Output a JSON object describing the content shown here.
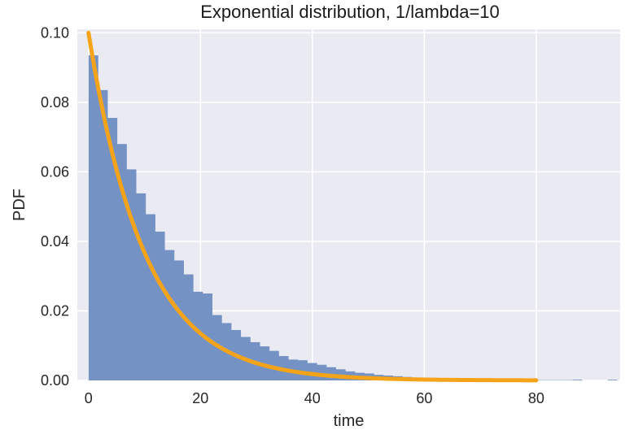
{
  "chart_data": {
    "type": "bar",
    "title": "Exponential distribution, 1/lambda=10",
    "xlabel": "time",
    "ylabel": "PDF",
    "xlim": [
      -2,
      95
    ],
    "ylim": [
      0,
      0.101
    ],
    "xticks": [
      0,
      20,
      40,
      60,
      80
    ],
    "yticks": [
      0.0,
      0.02,
      0.04,
      0.06,
      0.08,
      0.1
    ],
    "xtick_labels": [
      "0",
      "20",
      "40",
      "60",
      "80"
    ],
    "ytick_labels": [
      "0.00",
      "0.02",
      "0.04",
      "0.06",
      "0.08",
      "0.10"
    ],
    "grid": true,
    "histogram": {
      "bin_width": 1.7,
      "bin_start": 0,
      "values": [
        0.0935,
        0.0835,
        0.0755,
        0.068,
        0.0607,
        0.0538,
        0.0478,
        0.0428,
        0.0375,
        0.0345,
        0.0305,
        0.0255,
        0.025,
        0.0188,
        0.0165,
        0.0145,
        0.0125,
        0.011,
        0.0098,
        0.0085,
        0.007,
        0.006,
        0.0058,
        0.005,
        0.0045,
        0.0038,
        0.0032,
        0.0026,
        0.0022,
        0.002,
        0.0016,
        0.0014,
        0.0012,
        0.001,
        0.0008,
        0.0007,
        0.0006,
        0.0005,
        0.0004,
        0.0004,
        0.0003,
        0.0003,
        0.0002,
        0.0002,
        0.0002,
        0.0001,
        0.0001,
        0.0001,
        0.0001,
        0.0001,
        0.0001,
        0.0,
        0.0,
        0.0,
        0.0
      ],
      "sparse": [
        {
          "x": 86.5,
          "value": 0.0002
        },
        {
          "x": 92.8,
          "value": 0.0002
        }
      ]
    },
    "series": [
      {
        "values_function": "0.1*exp(-x/10)",
        "x_range": [
          0,
          80
        ],
        "color": "#F5A318"
      }
    ],
    "colors": {
      "bars": "#7592C4",
      "curve": "#F5A318",
      "plot_background": "#EAEAF2",
      "grid": "#FFFFFF"
    }
  }
}
